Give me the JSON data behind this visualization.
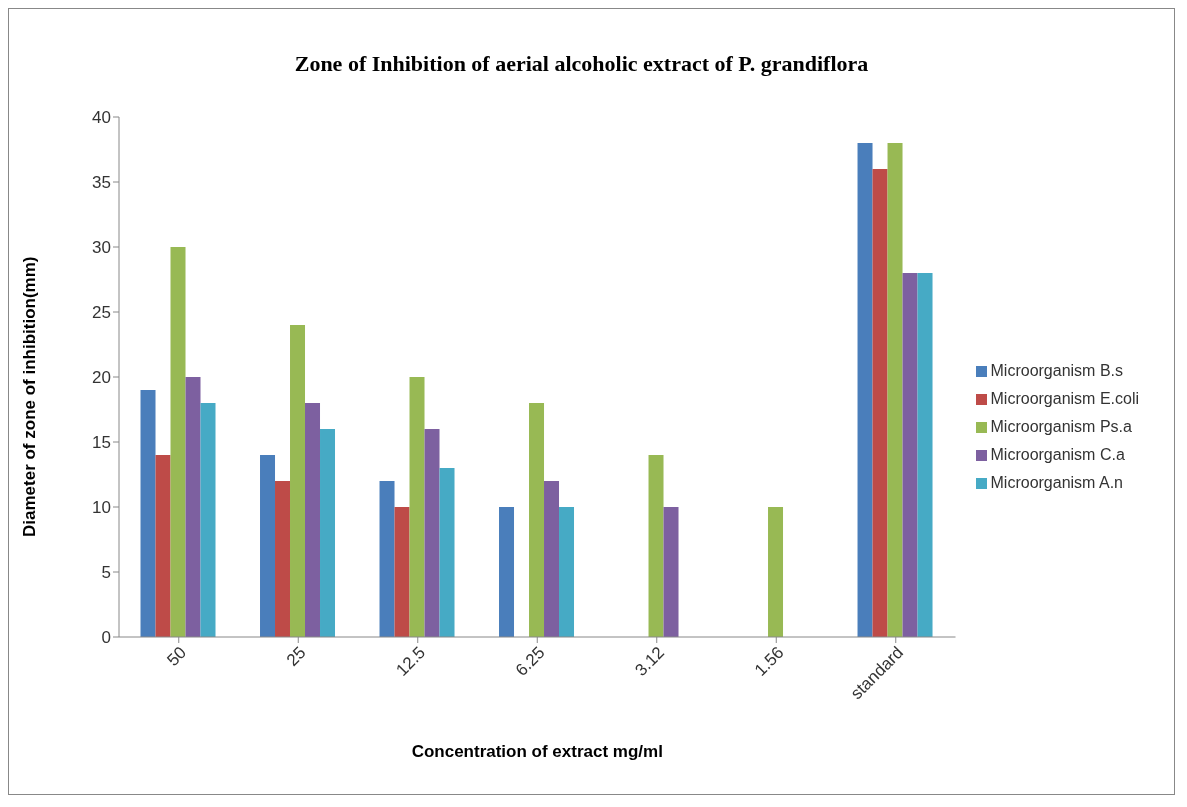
{
  "chart_data": {
    "type": "bar",
    "title": "Zone of Inhibition of aerial alcoholic extract of P. grandiflora",
    "xlabel": "Concentration of extract mg/ml",
    "ylabel": "Diameter of zone of inhibition(mm)",
    "categories": [
      "50",
      "25",
      "12.5",
      "6.25",
      "3.12",
      "1.56",
      "standard"
    ],
    "series": [
      {
        "name": "Microorganism B.s",
        "color": "#4a7ebb",
        "values": [
          19,
          14,
          12,
          10,
          null,
          null,
          38
        ]
      },
      {
        "name": "Microorganism E.coli",
        "color": "#be4b48",
        "values": [
          14,
          12,
          10,
          null,
          null,
          null,
          36
        ]
      },
      {
        "name": "Microorganism Ps.a",
        "color": "#98b954",
        "values": [
          30,
          24,
          20,
          18,
          14,
          10,
          38
        ]
      },
      {
        "name": "Microorganism C.a",
        "color": "#7d60a0",
        "values": [
          20,
          18,
          16,
          12,
          10,
          null,
          28
        ]
      },
      {
        "name": "Microorganism A.n",
        "color": "#46aac5",
        "values": [
          18,
          16,
          13,
          10,
          null,
          null,
          28
        ]
      }
    ],
    "ylim": [
      0,
      40
    ],
    "yticks": [
      0,
      5,
      10,
      15,
      20,
      25,
      30,
      35,
      40
    ],
    "grid": false,
    "legend": "right"
  }
}
